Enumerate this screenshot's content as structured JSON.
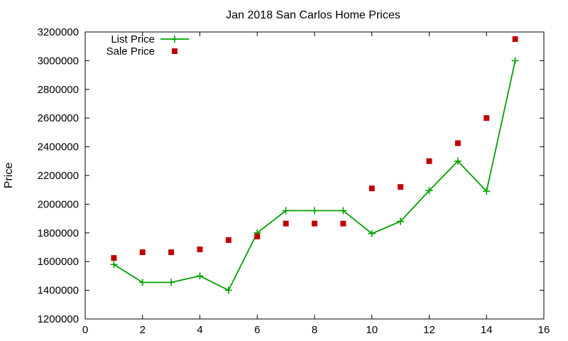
{
  "chart_data": {
    "type": "line",
    "title": "Jan 2018 San Carlos Home Prices",
    "xlabel": "",
    "ylabel": "Price",
    "xlim": [
      0,
      16
    ],
    "ylim": [
      1200000,
      3200000
    ],
    "xticks": [
      0,
      2,
      4,
      6,
      8,
      10,
      12,
      14,
      16
    ],
    "yticks": [
      1200000,
      1400000,
      1600000,
      1800000,
      2000000,
      2200000,
      2400000,
      2600000,
      2800000,
      3000000,
      3200000
    ],
    "grid": false,
    "legend_position": "top-left",
    "series": [
      {
        "name": "List Price",
        "style": "line-points",
        "marker": "plus",
        "color": "#00a000",
        "x": [
          1,
          2,
          3,
          4,
          5,
          6,
          7,
          8,
          9,
          10,
          11,
          12,
          13,
          14,
          15
        ],
        "values": [
          1580000,
          1455000,
          1455000,
          1500000,
          1400000,
          1800000,
          1955000,
          1955000,
          1955000,
          1795000,
          1880000,
          2095000,
          2300000,
          2090000,
          3000000
        ]
      },
      {
        "name": "Sale Price",
        "style": "points",
        "marker": "square",
        "color": "#c00000",
        "x": [
          1,
          2,
          3,
          4,
          5,
          6,
          7,
          8,
          9,
          10,
          11,
          12,
          13,
          14,
          15
        ],
        "values": [
          1625000,
          1665000,
          1665000,
          1685000,
          1750000,
          1775000,
          1865000,
          1865000,
          1865000,
          2110000,
          2120000,
          2300000,
          2425000,
          2600000,
          3150000
        ]
      }
    ]
  }
}
